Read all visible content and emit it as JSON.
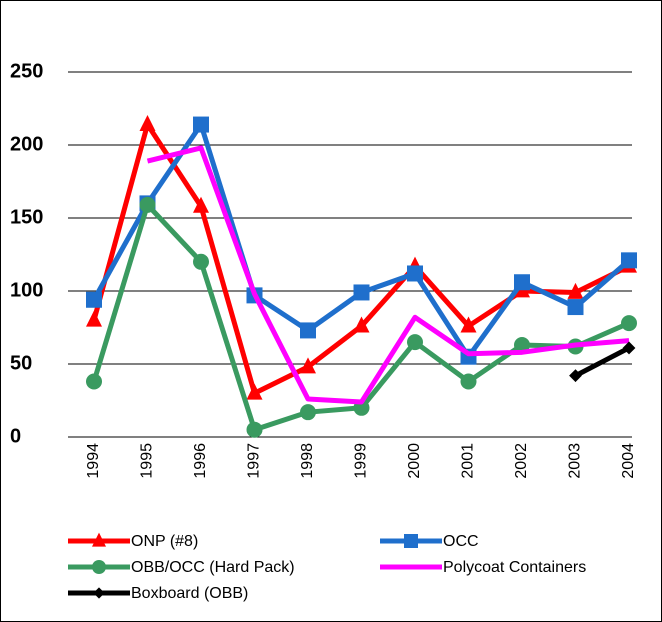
{
  "chart_data": {
    "type": "line",
    "categories": [
      "1994",
      "1995",
      "1996",
      "1997",
      "1998",
      "1999",
      "2000",
      "2001",
      "2002",
      "2003",
      "2004"
    ],
    "ylim": [
      0,
      250
    ],
    "yticks": [
      0,
      50,
      100,
      150,
      200,
      250
    ],
    "grid": true,
    "legend": "bottom",
    "series": [
      {
        "name": "ONP (#8)",
        "color": "#ff0000",
        "marker": "triangle",
        "values": [
          80,
          214,
          158,
          30,
          48,
          76,
          117,
          76,
          100,
          99,
          117
        ]
      },
      {
        "name": "OCC",
        "color": "#1f6fcc",
        "marker": "square",
        "values": [
          94,
          160,
          214,
          97,
          73,
          99,
          112,
          55,
          106,
          89,
          121
        ]
      },
      {
        "name": "OBB/OCC (Hard Pack)",
        "color": "#3a9a60",
        "marker": "circle",
        "values": [
          38,
          159,
          120,
          5,
          17,
          20,
          65,
          38,
          63,
          62,
          78
        ]
      },
      {
        "name": "Polycoat Containers",
        "color": "#ff00ff",
        "marker": "none",
        "values": [
          null,
          189,
          198,
          98,
          26,
          24,
          82,
          57,
          58,
          63,
          66
        ]
      },
      {
        "name": "Boxboard (OBB)",
        "color": "#000000",
        "marker": "diamond",
        "values": [
          null,
          null,
          null,
          null,
          null,
          null,
          null,
          null,
          null,
          42,
          61
        ]
      }
    ]
  }
}
